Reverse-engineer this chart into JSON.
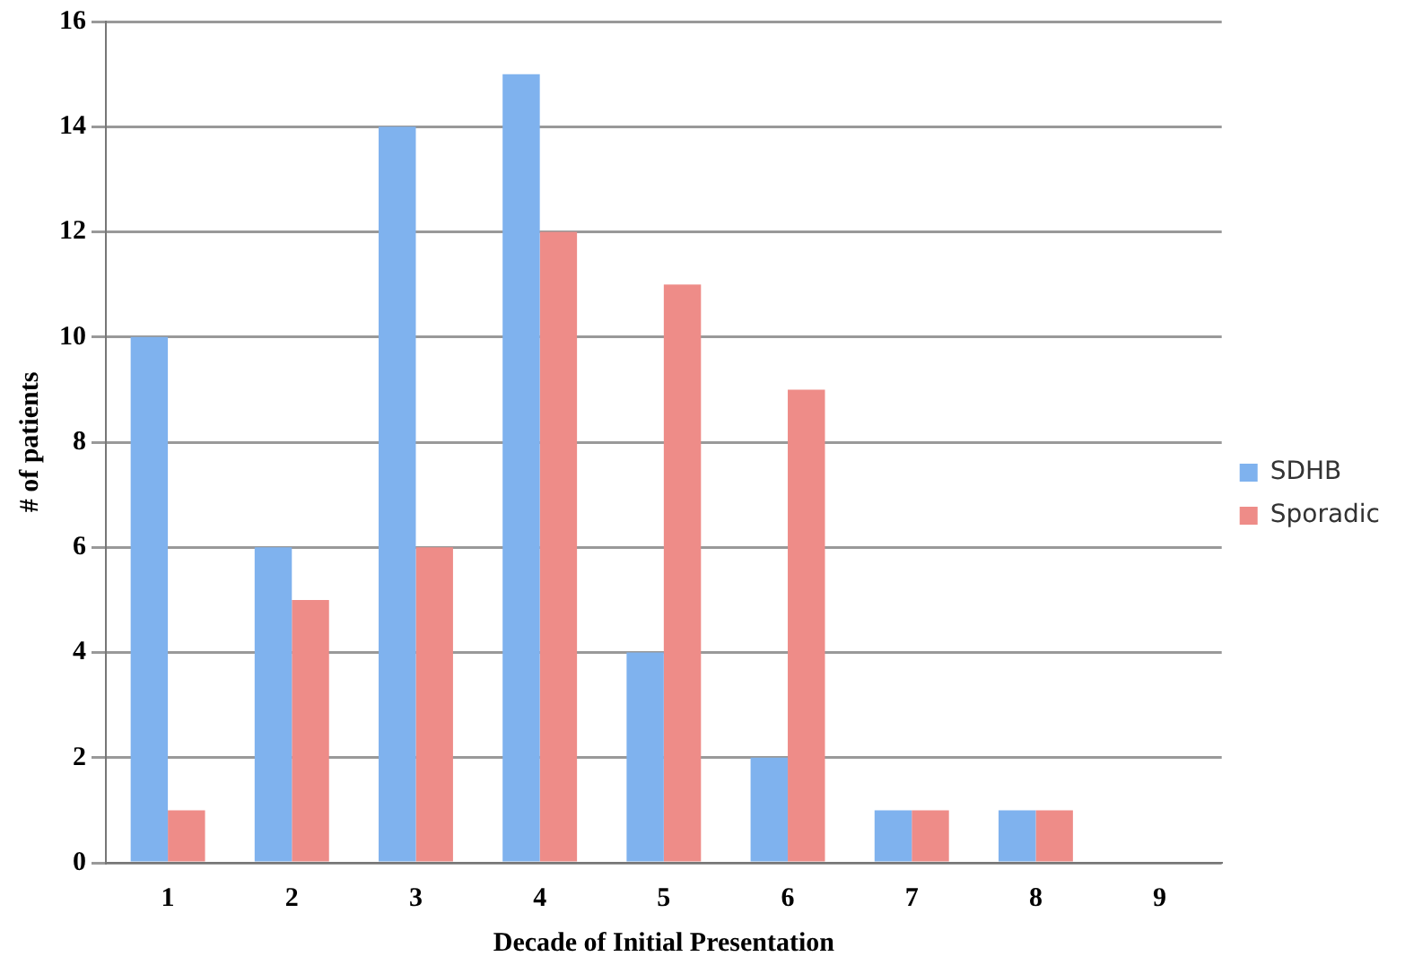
{
  "chart_data": {
    "type": "bar",
    "xlabel": "Decade of Initial Presentation",
    "ylabel": "# of patients",
    "categories": [
      "1",
      "2",
      "3",
      "4",
      "5",
      "6",
      "7",
      "8",
      "9"
    ],
    "series": [
      {
        "name": "SDHB",
        "color": "#7fb2ee",
        "values": [
          10,
          6,
          14,
          15,
          4,
          2,
          1,
          1,
          0
        ]
      },
      {
        "name": "Sporadic",
        "color": "#ee8c88",
        "values": [
          1,
          5,
          6,
          12,
          11,
          9,
          1,
          1,
          0
        ]
      }
    ],
    "ylim": [
      0,
      16
    ],
    "yticks": [
      0,
      2,
      4,
      6,
      8,
      10,
      12,
      14,
      16
    ],
    "grid": "y",
    "legend": "right"
  }
}
